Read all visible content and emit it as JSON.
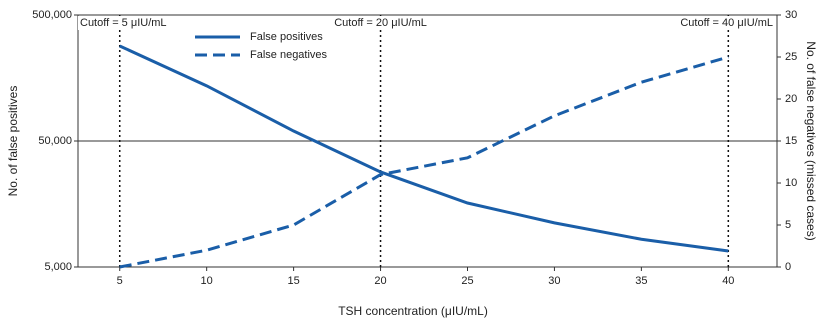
{
  "chart_data": {
    "type": "line",
    "xlabel": "TSH concentration (μIU/mL)",
    "ylabel": "No. of false positives",
    "y2label": "No. of false negatives (missed cases)",
    "x": [
      5,
      10,
      15,
      20,
      25,
      30,
      35,
      40
    ],
    "series": [
      {
        "name": "False positives",
        "color": "#1a5ea8",
        "linestyle": "solid",
        "axis": "y",
        "values": [
          284000,
          137000,
          60000,
          28400,
          16100,
          11200,
          8300,
          6700
        ]
      },
      {
        "name": "False negatives",
        "color": "#1a5ea8",
        "linestyle": "dashed",
        "axis": "y2",
        "values": [
          0,
          2,
          5,
          11,
          13,
          18,
          22,
          25
        ]
      }
    ],
    "xlim": [
      2.6,
      42.8
    ],
    "xticks": [
      5,
      10,
      15,
      20,
      25,
      30,
      35,
      40
    ],
    "ylim": [
      5000,
      500000
    ],
    "ylog": true,
    "yticks": [
      {
        "value": 5000,
        "label": "5,000"
      },
      {
        "value": 50000,
        "label": "50,000"
      },
      {
        "value": 500000,
        "label": "500,000"
      }
    ],
    "y2lim": [
      0,
      30
    ],
    "y2ticks": [
      0,
      5,
      10,
      15,
      20,
      25,
      30
    ],
    "grid": true,
    "annotations": [
      {
        "text": "Cutoff = 5 μIU/mL",
        "x": 5
      },
      {
        "text": "Cutoff = 20 μIU/mL",
        "x": 20
      },
      {
        "text": "Cutoff = 40 μIU/mL",
        "x": 40
      }
    ]
  }
}
